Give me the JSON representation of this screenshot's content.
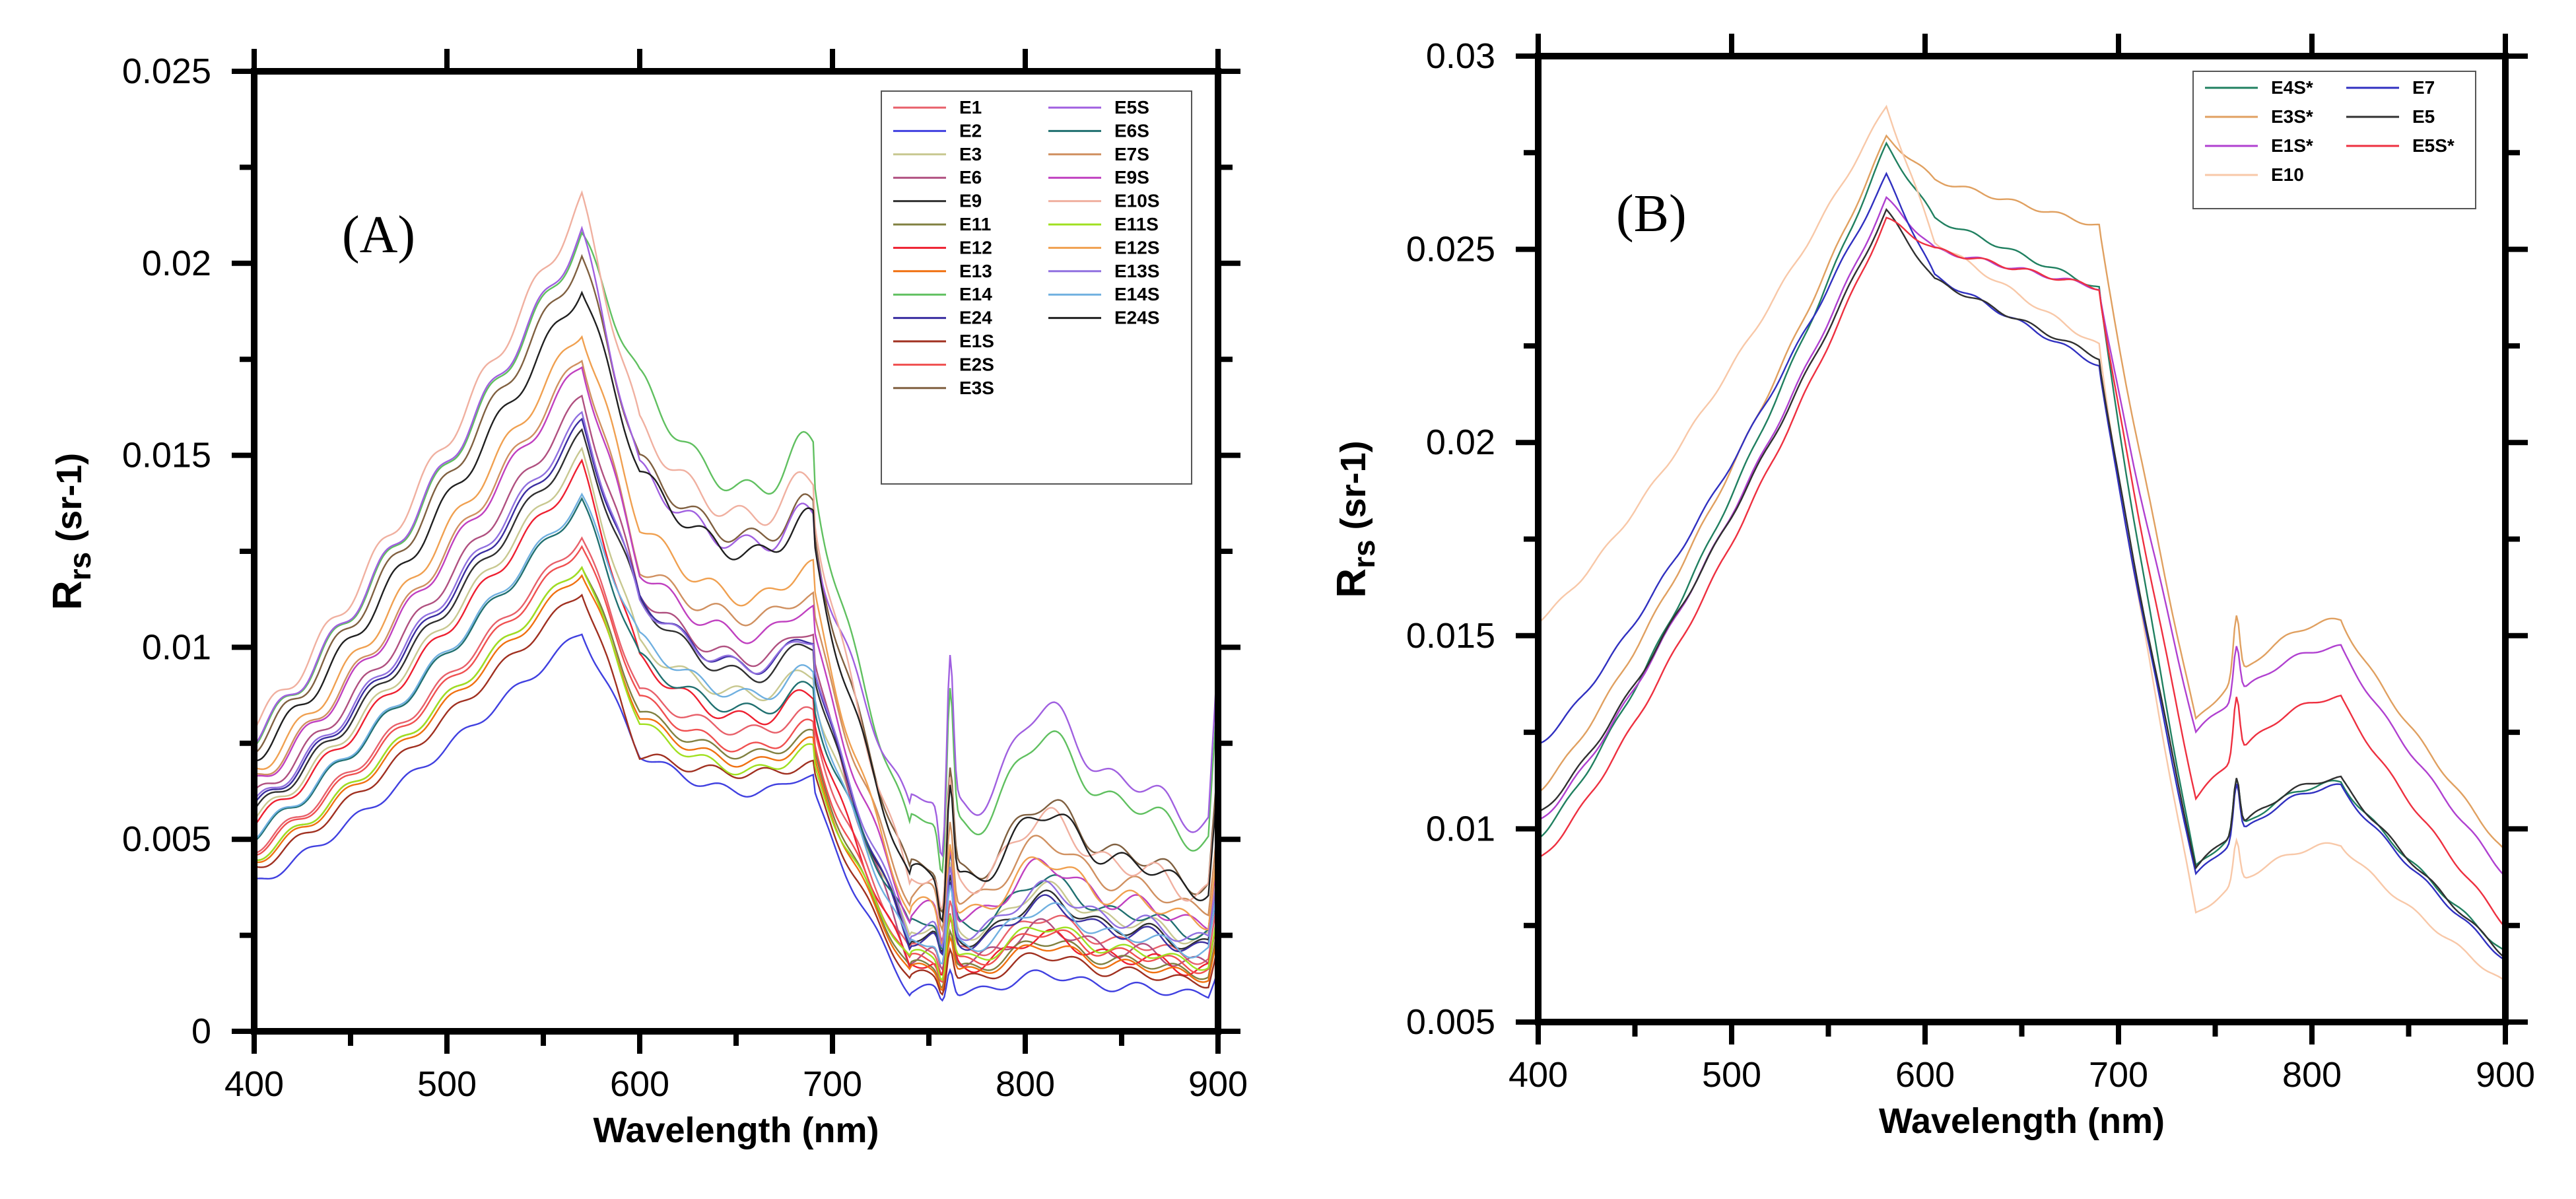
{
  "chart_data": [
    {
      "type": "line",
      "panel_label": "(A)",
      "xlabel": "Wavelength (nm)",
      "ylabel_main": "R",
      "ylabel_sub": "rs",
      "ylabel_unit": " (sr-1)",
      "xlim": [
        400,
        900
      ],
      "ylim": [
        0,
        0.025
      ],
      "xticks": [
        400,
        500,
        600,
        700,
        800,
        900
      ],
      "xtick_labels": [
        "400",
        "500",
        "600",
        "700",
        "800",
        "900"
      ],
      "yticks": [
        0,
        0.005,
        0.01,
        0.015,
        0.02,
        0.025
      ],
      "ytick_labels": [
        "0",
        "0.005",
        "0.01",
        "0.015",
        "0.02",
        "0.025"
      ],
      "legend_position": "top-right",
      "legend_columns": 2,
      "series": [
        {
          "name": "E1",
          "color": "#e8606a",
          "peak": 0.0129,
          "base": 0.0058,
          "shoulder": 0.008,
          "nir": 0.0024
        },
        {
          "name": "E2",
          "color": "#4040e0",
          "peak": 0.0104,
          "base": 0.0043,
          "shoulder": 0.0064,
          "nir": 0.0012
        },
        {
          "name": "E3",
          "color": "#c8c890",
          "peak": 0.015,
          "base": 0.0063,
          "shoulder": 0.009,
          "nir": 0.003
        },
        {
          "name": "E6",
          "color": "#b05080",
          "peak": 0.0165,
          "base": 0.0064,
          "shoulder": 0.01,
          "nir": 0.0022
        },
        {
          "name": "E9",
          "color": "#303030",
          "peak": 0.0155,
          "base": 0.0055,
          "shoulder": 0.0096,
          "nir": 0.0028
        },
        {
          "name": "E11",
          "color": "#808040",
          "peak": 0.0122,
          "base": 0.005,
          "shoulder": 0.0074,
          "nir": 0.0019
        },
        {
          "name": "E12",
          "color": "#ee2030",
          "peak": 0.0147,
          "base": 0.0052,
          "shoulder": 0.0084,
          "nir": 0.002
        },
        {
          "name": "E13",
          "color": "#f07010",
          "peak": 0.012,
          "base": 0.0047,
          "shoulder": 0.0072,
          "nir": 0.0018
        },
        {
          "name": "E14",
          "color": "#60c060",
          "peak": 0.0207,
          "base": 0.0085,
          "shoulder": 0.0146,
          "nir": 0.0062
        },
        {
          "name": "E24",
          "color": "#3a2ea0",
          "peak": 0.0158,
          "base": 0.006,
          "shoulder": 0.0098,
          "nir": 0.0027
        },
        {
          "name": "E1S",
          "color": "#a03020",
          "peak": 0.0115,
          "base": 0.0058,
          "shoulder": 0.0068,
          "nir": 0.0016
        },
        {
          "name": "E2S",
          "color": "#f05050",
          "peak": 0.0127,
          "base": 0.0048,
          "shoulder": 0.0076,
          "nir": 0.0021
        },
        {
          "name": "E3S",
          "color": "#806040",
          "peak": 0.0202,
          "base": 0.009,
          "shoulder": 0.0132,
          "nir": 0.0048
        },
        {
          "name": "E5S",
          "color": "#a060e0",
          "peak": 0.0208,
          "base": 0.0089,
          "shoulder": 0.013,
          "nir": 0.0068
        },
        {
          "name": "E6S",
          "color": "#207070",
          "peak": 0.0138,
          "base": 0.0058,
          "shoulder": 0.0086,
          "nir": 0.0032
        },
        {
          "name": "E7S",
          "color": "#d09060",
          "peak": 0.0176,
          "base": 0.0082,
          "shoulder": 0.011,
          "nir": 0.004
        },
        {
          "name": "E9S",
          "color": "#c040c0",
          "peak": 0.0174,
          "base": 0.007,
          "shoulder": 0.0106,
          "nir": 0.0035
        },
        {
          "name": "E10S",
          "color": "#f0b0a0",
          "peak": 0.0216,
          "base": 0.0088,
          "shoulder": 0.0138,
          "nir": 0.0045
        },
        {
          "name": "E11S",
          "color": "#a0e020",
          "peak": 0.0122,
          "base": 0.0044,
          "shoulder": 0.007,
          "nir": 0.0022
        },
        {
          "name": "E12S",
          "color": "#f0a050",
          "peak": 0.0183,
          "base": 0.0076,
          "shoulder": 0.0116,
          "nir": 0.0036
        },
        {
          "name": "E13S",
          "color": "#9070e0",
          "peak": 0.016,
          "base": 0.0062,
          "shoulder": 0.0098,
          "nir": 0.003
        },
        {
          "name": "E14S",
          "color": "#70b0e0",
          "peak": 0.0139,
          "base": 0.0059,
          "shoulder": 0.009,
          "nir": 0.0026
        },
        {
          "name": "E24S",
          "color": "#202020",
          "peak": 0.0194,
          "base": 0.0083,
          "shoulder": 0.0128,
          "nir": 0.0046
        }
      ]
    },
    {
      "type": "line",
      "panel_label": "(B)",
      "xlabel": "Wavelength (nm)",
      "ylabel_main": "R",
      "ylabel_sub": "rs",
      "ylabel_unit": " (sr-1)",
      "xlim": [
        400,
        900
      ],
      "ylim": [
        0.005,
        0.03
      ],
      "xticks": [
        400,
        500,
        600,
        700,
        800,
        900
      ],
      "xtick_labels": [
        "400",
        "500",
        "600",
        "700",
        "800",
        "900"
      ],
      "yticks": [
        0.005,
        0.01,
        0.015,
        0.02,
        0.025,
        0.03
      ],
      "ytick_labels": [
        "0.005",
        "0.01",
        "0.015",
        "0.02",
        "0.025",
        "0.03"
      ],
      "legend_position": "top-right",
      "legend_columns": 2,
      "series": [
        {
          "name": "E4S*",
          "color": "#208060",
          "start": 0.0098,
          "peak": 0.0277,
          "plateau": 0.0258,
          "shoulder": 0.024,
          "nir": 0.0112,
          "trough": 0.009,
          "end": 0.0068
        },
        {
          "name": "E3S*",
          "color": "#e0a060",
          "start": 0.011,
          "peak": 0.0279,
          "plateau": 0.0268,
          "shoulder": 0.0256,
          "nir": 0.0154,
          "trough": 0.0128,
          "end": 0.0094
        },
        {
          "name": "E1S*",
          "color": "#b040d0",
          "start": 0.0102,
          "peak": 0.0263,
          "plateau": 0.025,
          "shoulder": 0.024,
          "nir": 0.0147,
          "trough": 0.0125,
          "end": 0.0088
        },
        {
          "name": "E10",
          "color": "#f8c8a8",
          "start": 0.0154,
          "peak": 0.0287,
          "plateau": 0.0252,
          "shoulder": 0.0225,
          "nir": 0.0096,
          "trough": 0.0078,
          "end": 0.006
        },
        {
          "name": "E7",
          "color": "#3030c0",
          "start": 0.0122,
          "peak": 0.0269,
          "plateau": 0.0243,
          "shoulder": 0.022,
          "nir": 0.0111,
          "trough": 0.0088,
          "end": 0.0066
        },
        {
          "name": "E5",
          "color": "#303030",
          "start": 0.0104,
          "peak": 0.026,
          "plateau": 0.0242,
          "shoulder": 0.0222,
          "nir": 0.0113,
          "trough": 0.009,
          "end": 0.0067
        },
        {
          "name": "E5S*",
          "color": "#ee3040",
          "start": 0.0092,
          "peak": 0.0258,
          "plateau": 0.025,
          "shoulder": 0.024,
          "nir": 0.0134,
          "trough": 0.0108,
          "end": 0.0075
        }
      ]
    }
  ]
}
